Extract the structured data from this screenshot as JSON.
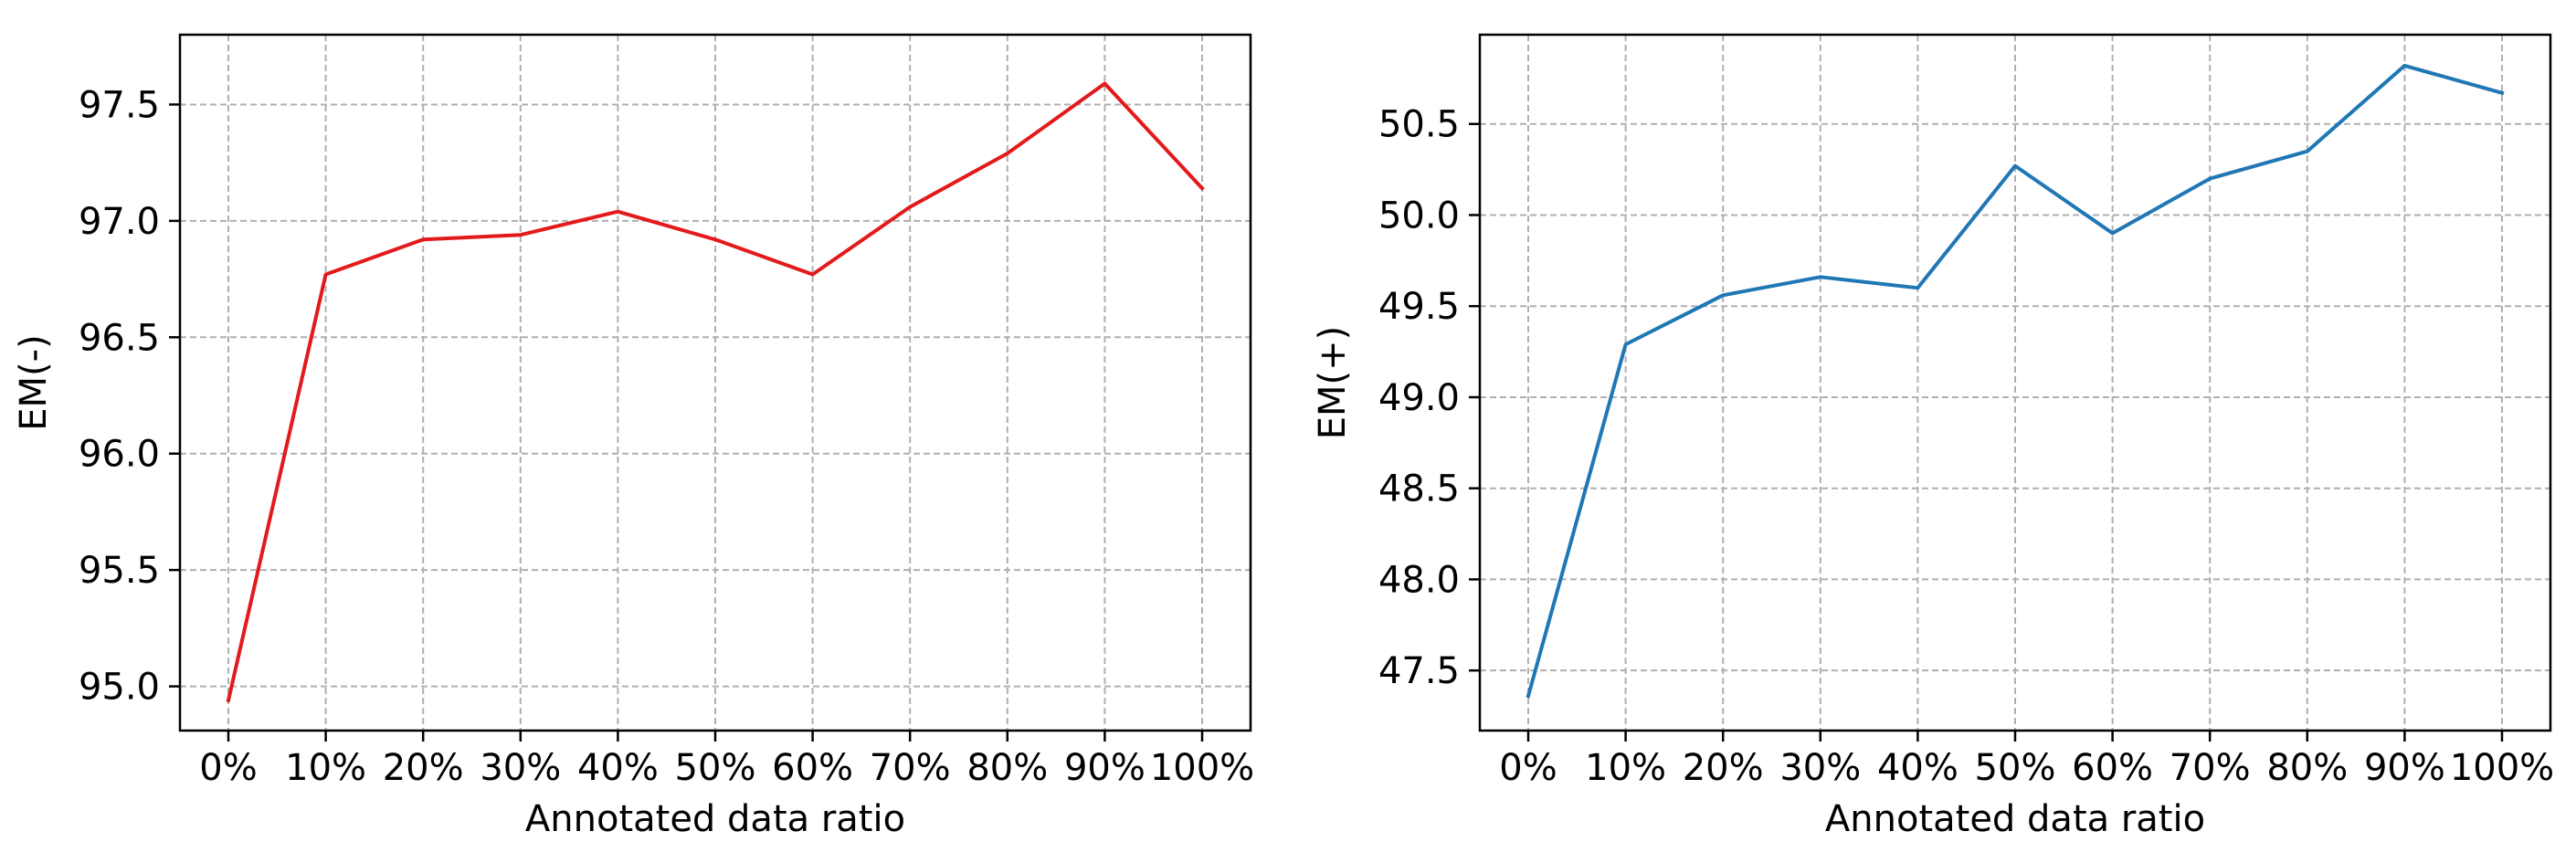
{
  "chart_data": [
    {
      "type": "line",
      "xlabel": "Annotated data ratio",
      "ylabel": "EM(-)",
      "categories": [
        "0%",
        "10%",
        "20%",
        "30%",
        "40%",
        "50%",
        "60%",
        "70%",
        "80%",
        "90%",
        "100%"
      ],
      "series": [
        {
          "color": "#e31a1c",
          "values": [
            94.94,
            96.77,
            96.92,
            96.94,
            97.04,
            96.92,
            96.77,
            97.06,
            97.29,
            97.59,
            97.14
          ]
        }
      ],
      "ylim": [
        94.81,
        97.8
      ],
      "yticks": [
        95.0,
        95.5,
        96.0,
        96.5,
        97.0,
        97.5
      ],
      "ytick_labels": [
        "95.0",
        "95.5",
        "96.0",
        "96.5",
        "97.0",
        "97.5"
      ],
      "grid": true
    },
    {
      "type": "line",
      "xlabel": "Annotated data ratio",
      "ylabel": "EM(+)",
      "categories": [
        "0%",
        "10%",
        "20%",
        "30%",
        "40%",
        "50%",
        "60%",
        "70%",
        "80%",
        "90%",
        "100%"
      ],
      "series": [
        {
          "color": "#1f77b4",
          "values": [
            47.36,
            49.29,
            49.56,
            49.66,
            49.6,
            50.27,
            49.9,
            50.2,
            50.35,
            50.82,
            50.67
          ]
        }
      ],
      "ylim": [
        47.17,
        50.99
      ],
      "yticks": [
        47.5,
        48.0,
        48.5,
        49.0,
        49.5,
        50.0,
        50.5
      ],
      "ytick_labels": [
        "47.5",
        "48.0",
        "48.5",
        "49.0",
        "49.5",
        "50.0",
        "50.5"
      ],
      "grid": true
    }
  ]
}
